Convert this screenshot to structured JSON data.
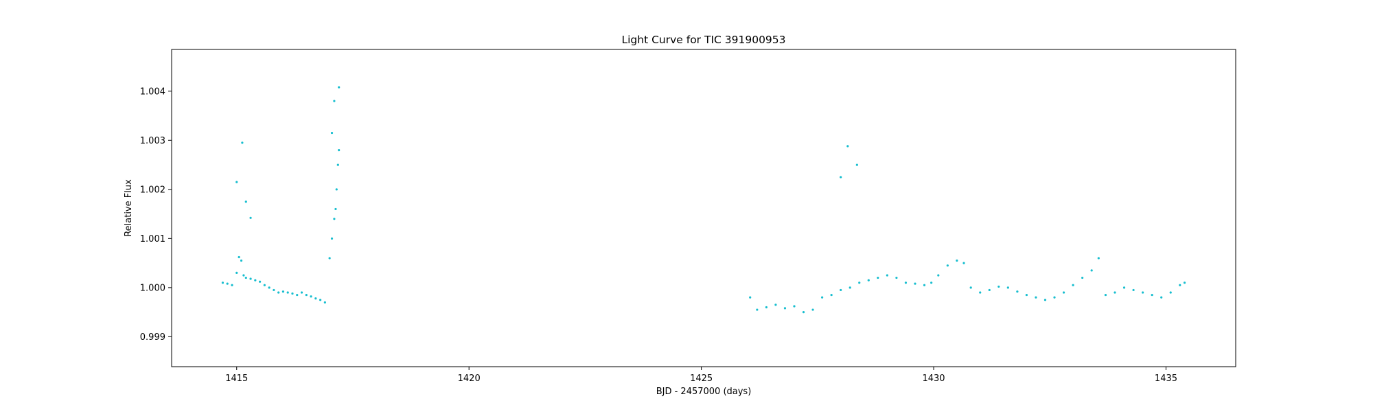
{
  "chart_data": {
    "type": "scatter",
    "title": "Light Curve for TIC 391900953",
    "xlabel": "BJD - 2457000 (days)",
    "ylabel": "Relative Flux",
    "xlim": [
      1413.6,
      1436.5
    ],
    "ylim": [
      0.99839,
      1.00485
    ],
    "xticks": [
      1415,
      1420,
      1425,
      1430,
      1435
    ],
    "xtick_labels": [
      "1415",
      "1420",
      "1425",
      "1430",
      "1435"
    ],
    "yticks": [
      0.999,
      1.0,
      1.001,
      1.002,
      1.003,
      1.004
    ],
    "ytick_labels": [
      "0.999",
      "1.000",
      "1.001",
      "1.002",
      "1.003",
      "1.004"
    ],
    "grid": false,
    "marker_color": "#17becf",
    "series": [
      {
        "x": [
          1414.7,
          1414.8,
          1414.9,
          1415.0,
          1415.05,
          1415.1,
          1415.15,
          1415.2,
          1415.3,
          1415.4,
          1415.5,
          1415.6,
          1415.7,
          1415.8,
          1415.9,
          1416.0,
          1416.1,
          1416.2,
          1416.3,
          1416.4,
          1416.5,
          1416.6,
          1416.7,
          1416.8,
          1416.9,
          1417.0,
          1417.05,
          1417.1,
          1417.13,
          1417.15,
          1417.18,
          1417.2,
          1415.0,
          1415.12,
          1415.2,
          1415.3,
          1417.05,
          1417.1,
          1417.2,
          1426.05,
          1426.2,
          1426.4,
          1426.6,
          1426.8,
          1427.0,
          1427.2,
          1427.4,
          1427.6,
          1427.8,
          1428.0,
          1428.2,
          1428.4,
          1428.6,
          1428.8,
          1429.0,
          1429.2,
          1429.4,
          1429.6,
          1429.8,
          1429.95,
          1430.1,
          1430.3,
          1430.5,
          1430.65,
          1430.8,
          1431.0,
          1431.2,
          1431.4,
          1431.6,
          1431.8,
          1432.0,
          1432.2,
          1432.4,
          1432.6,
          1432.8,
          1433.0,
          1433.2,
          1433.4,
          1433.55,
          1433.7,
          1433.9,
          1434.1,
          1434.3,
          1434.5,
          1434.7,
          1434.9,
          1435.1,
          1435.3,
          1435.4,
          1428.0,
          1428.15,
          1428.35
        ],
        "y": [
          1.0001,
          1.00008,
          1.00005,
          1.0003,
          1.00062,
          1.00055,
          1.00025,
          1.0002,
          1.00018,
          1.00015,
          1.00012,
          1.00005,
          1.0,
          0.99995,
          0.9999,
          0.99992,
          0.9999,
          0.99988,
          0.99985,
          0.9999,
          0.99985,
          0.99982,
          0.99978,
          0.99975,
          0.9997,
          1.0006,
          1.001,
          1.0014,
          1.0016,
          1.002,
          1.0025,
          1.0028,
          1.00215,
          1.00295,
          1.00175,
          1.00142,
          1.00315,
          1.0038,
          1.00408,
          0.9998,
          0.99955,
          0.9996,
          0.99965,
          0.99958,
          0.99962,
          0.9995,
          0.99955,
          0.9998,
          0.99985,
          0.99995,
          1.0,
          1.0001,
          1.00015,
          1.0002,
          1.00025,
          1.0002,
          1.0001,
          1.00008,
          1.00005,
          1.0001,
          1.00025,
          1.00045,
          1.00055,
          1.0005,
          1.0,
          0.9999,
          0.99995,
          1.00002,
          1.0,
          0.99992,
          0.99985,
          0.9998,
          0.99975,
          0.9998,
          0.9999,
          1.00005,
          1.0002,
          1.00035,
          1.0006,
          0.99985,
          0.9999,
          1.0,
          0.99995,
          0.9999,
          0.99985,
          0.9998,
          0.9999,
          1.00005,
          1.0001,
          1.00225,
          1.00288,
          1.0025
        ]
      }
    ]
  }
}
